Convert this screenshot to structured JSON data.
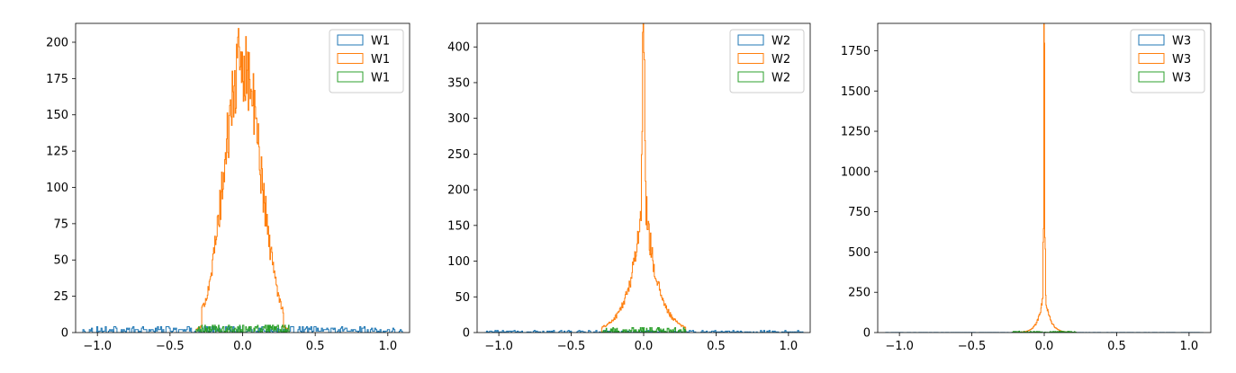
{
  "chart_data": [
    {
      "type": "histogram",
      "xlim": [
        -1.15,
        1.15
      ],
      "ylim": [
        0,
        213
      ],
      "x_ticks": [
        -1.0,
        -0.5,
        0.0,
        0.5,
        1.0
      ],
      "y_ticks": [
        0,
        25,
        50,
        75,
        100,
        125,
        150,
        175,
        200
      ],
      "x_tick_labels": [
        "−1.0",
        "−0.5",
        "0.0",
        "0.5",
        "1.0"
      ],
      "y_tick_labels": [
        "0",
        "25",
        "50",
        "75",
        "100",
        "125",
        "150",
        "175",
        "200"
      ],
      "legend": {
        "position": "upper right",
        "entries": [
          "W1",
          "W1",
          "W1"
        ]
      },
      "series": [
        {
          "name": "W1",
          "color": "#1f77b4",
          "distribution": "uniform",
          "range": [
            -1.1,
            1.1
          ],
          "bins": 300,
          "bin_count_level": 1.5,
          "bin_count_max": 5
        },
        {
          "name": "W1",
          "color": "#ff7f0e",
          "distribution": "peaked",
          "range": [
            -0.32,
            0.32
          ],
          "bins": 150,
          "peak_count": 203,
          "peak_x": 0.0
        },
        {
          "name": "W1",
          "color": "#2ca02c",
          "distribution": "uniform",
          "range": [
            -0.32,
            0.32
          ],
          "bins": 150,
          "bin_count_level": 2,
          "bin_count_max": 5
        }
      ]
    },
    {
      "type": "histogram",
      "xlim": [
        -1.15,
        1.15
      ],
      "ylim": [
        0,
        433
      ],
      "x_ticks": [
        -1.0,
        -0.5,
        0.0,
        0.5,
        1.0
      ],
      "y_ticks": [
        0,
        50,
        100,
        150,
        200,
        250,
        300,
        350,
        400
      ],
      "x_tick_labels": [
        "−1.0",
        "−0.5",
        "0.0",
        "0.5",
        "1.0"
      ],
      "y_tick_labels": [
        "0",
        "50",
        "100",
        "150",
        "200",
        "250",
        "300",
        "350",
        "400"
      ],
      "legend": {
        "position": "upper right",
        "entries": [
          "W2",
          "W2",
          "W2"
        ]
      },
      "series": [
        {
          "name": "W2",
          "color": "#1f77b4",
          "distribution": "uniform",
          "range": [
            -1.1,
            1.1
          ],
          "bins": 300,
          "bin_count_level": 1,
          "bin_count_max": 3
        },
        {
          "name": "W2",
          "color": "#ff7f0e",
          "distribution": "peaked",
          "range": [
            -0.29,
            0.29
          ],
          "bins": 150,
          "peak_count": 412,
          "peak_x": 0.0
        },
        {
          "name": "W2",
          "color": "#2ca02c",
          "distribution": "uniform",
          "range": [
            -0.29,
            0.29
          ],
          "bins": 150,
          "bin_count_level": 2.5,
          "bin_count_max": 7
        }
      ]
    },
    {
      "type": "histogram",
      "xlim": [
        -1.15,
        1.15
      ],
      "ylim": [
        0,
        1920
      ],
      "x_ticks": [
        -1.0,
        -0.5,
        0.0,
        0.5,
        1.0
      ],
      "y_ticks": [
        0,
        250,
        500,
        750,
        1000,
        1250,
        1500,
        1750
      ],
      "x_tick_labels": [
        "−1.0",
        "−0.5",
        "0.0",
        "0.5",
        "1.0"
      ],
      "y_tick_labels": [
        "0",
        "250",
        "500",
        "750",
        "1000",
        "1250",
        "1500",
        "1750"
      ],
      "legend": {
        "position": "upper right",
        "entries": [
          "W3",
          "W3",
          "W3"
        ]
      },
      "series": [
        {
          "name": "W3",
          "color": "#1f77b4",
          "distribution": "uniform",
          "range": [
            -1.1,
            1.1
          ],
          "bins": 300,
          "bin_count_level": 0.5,
          "bin_count_max": 3
        },
        {
          "name": "W3",
          "color": "#ff7f0e",
          "distribution": "peaked",
          "range": [
            -0.22,
            0.22
          ],
          "bins": 150,
          "peak_count": 1830,
          "peak_x": 0.0
        },
        {
          "name": "W3",
          "color": "#2ca02c",
          "distribution": "uniform",
          "range": [
            -0.22,
            0.22
          ],
          "bins": 150,
          "bin_count_level": 3,
          "bin_count_max": 10
        }
      ]
    }
  ]
}
